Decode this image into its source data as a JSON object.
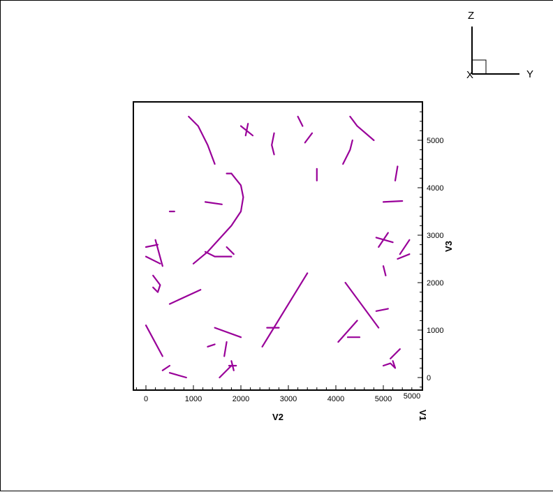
{
  "chart_data": {
    "type": "line",
    "xlabel": "V2",
    "ylabel": "V3",
    "depth_label": "V1",
    "xlim": [
      -250,
      5800
    ],
    "ylim": [
      -250,
      5800
    ],
    "x_ticks": [
      0,
      1000,
      2000,
      3000,
      4000,
      5000
    ],
    "y_ticks": [
      0,
      1000,
      2000,
      3000,
      4000,
      5000
    ],
    "x_tick_labels": [
      "0",
      "1000",
      "2000",
      "3000",
      "4000",
      "5000"
    ],
    "y_tick_labels": [
      "0",
      "1000",
      "2000",
      "3000",
      "4000",
      "5000"
    ],
    "depth_tick_label": "5000",
    "line_color": "#990099",
    "triad": {
      "z": "Z",
      "x": "X",
      "y": "Y"
    },
    "segments": [
      [
        [
          900,
          5500
        ],
        [
          1100,
          5300
        ],
        [
          1300,
          4900
        ],
        [
          1450,
          4500
        ]
      ],
      [
        [
          1000,
          2400
        ],
        [
          1300,
          2650
        ],
        [
          1800,
          3200
        ],
        [
          2000,
          3500
        ],
        [
          2050,
          3800
        ],
        [
          2000,
          4050
        ],
        [
          1800,
          4300
        ]
      ],
      [
        [
          1250,
          3700
        ],
        [
          1600,
          3650
        ]
      ],
      [
        [
          1700,
          4300
        ],
        [
          1800,
          4300
        ]
      ],
      [
        [
          2000,
          5300
        ],
        [
          2250,
          5100
        ]
      ],
      [
        [
          2100,
          5100
        ],
        [
          2150,
          5350
        ]
      ],
      [
        [
          2700,
          4700
        ],
        [
          2650,
          4900
        ],
        [
          2700,
          5150
        ]
      ],
      [
        [
          3200,
          5500
        ],
        [
          3300,
          5300
        ]
      ],
      [
        [
          3350,
          4950
        ],
        [
          3500,
          5150
        ]
      ],
      [
        [
          3600,
          4400
        ],
        [
          3600,
          4150
        ]
      ],
      [
        [
          4150,
          4500
        ],
        [
          4300,
          4800
        ],
        [
          4350,
          5000
        ]
      ],
      [
        [
          4300,
          5500
        ],
        [
          4450,
          5300
        ],
        [
          4800,
          5000
        ]
      ],
      [
        [
          5300,
          4450
        ],
        [
          5250,
          4150
        ]
      ],
      [
        [
          5000,
          3700
        ],
        [
          5400,
          3720
        ]
      ],
      [
        [
          4850,
          2950
        ],
        [
          5200,
          2850
        ]
      ],
      [
        [
          4900,
          2750
        ],
        [
          5100,
          3050
        ]
      ],
      [
        [
          5000,
          2350
        ],
        [
          5050,
          2150
        ]
      ],
      [
        [
          5300,
          2500
        ],
        [
          5550,
          2600
        ]
      ],
      [
        [
          5350,
          2600
        ],
        [
          5550,
          2900
        ]
      ],
      [
        [
          0,
          2750
        ],
        [
          250,
          2800
        ]
      ],
      [
        [
          0,
          2550
        ],
        [
          300,
          2400
        ]
      ],
      [
        [
          200,
          2900
        ],
        [
          350,
          2350
        ]
      ],
      [
        [
          150,
          2150
        ],
        [
          300,
          1950
        ],
        [
          250,
          1800
        ],
        [
          150,
          1900
        ]
      ],
      [
        [
          500,
          1550
        ],
        [
          1150,
          1850
        ]
      ],
      [
        [
          500,
          3500
        ],
        [
          600,
          3500
        ]
      ],
      [
        [
          1250,
          2650
        ],
        [
          1450,
          2550
        ],
        [
          1800,
          2550
        ]
      ],
      [
        [
          1700,
          2750
        ],
        [
          1850,
          2600
        ]
      ],
      [
        [
          1450,
          1050
        ],
        [
          2000,
          850
        ]
      ],
      [
        [
          1300,
          650
        ],
        [
          1450,
          700
        ]
      ],
      [
        [
          1650,
          450
        ],
        [
          1700,
          750
        ]
      ],
      [
        [
          1550,
          0
        ],
        [
          1800,
          250
        ]
      ],
      [
        [
          1800,
          350
        ],
        [
          1850,
          150
        ]
      ],
      [
        [
          1750,
          250
        ],
        [
          1900,
          250
        ]
      ],
      [
        [
          0,
          1100
        ],
        [
          350,
          450
        ]
      ],
      [
        [
          350,
          150
        ],
        [
          500,
          250
        ]
      ],
      [
        [
          500,
          100
        ],
        [
          850,
          0
        ]
      ],
      [
        [
          2450,
          650
        ],
        [
          3400,
          2200
        ]
      ],
      [
        [
          2550,
          1050
        ],
        [
          2800,
          1050
        ]
      ],
      [
        [
          4200,
          2000
        ],
        [
          4900,
          1050
        ]
      ],
      [
        [
          4050,
          750
        ],
        [
          4450,
          1200
        ]
      ],
      [
        [
          4250,
          850
        ],
        [
          4500,
          850
        ]
      ],
      [
        [
          4850,
          1400
        ],
        [
          5100,
          1450
        ]
      ],
      [
        [
          5000,
          250
        ],
        [
          5150,
          300
        ],
        [
          5250,
          200
        ],
        [
          5200,
          350
        ]
      ],
      [
        [
          5150,
          400
        ],
        [
          5350,
          600
        ]
      ]
    ]
  }
}
